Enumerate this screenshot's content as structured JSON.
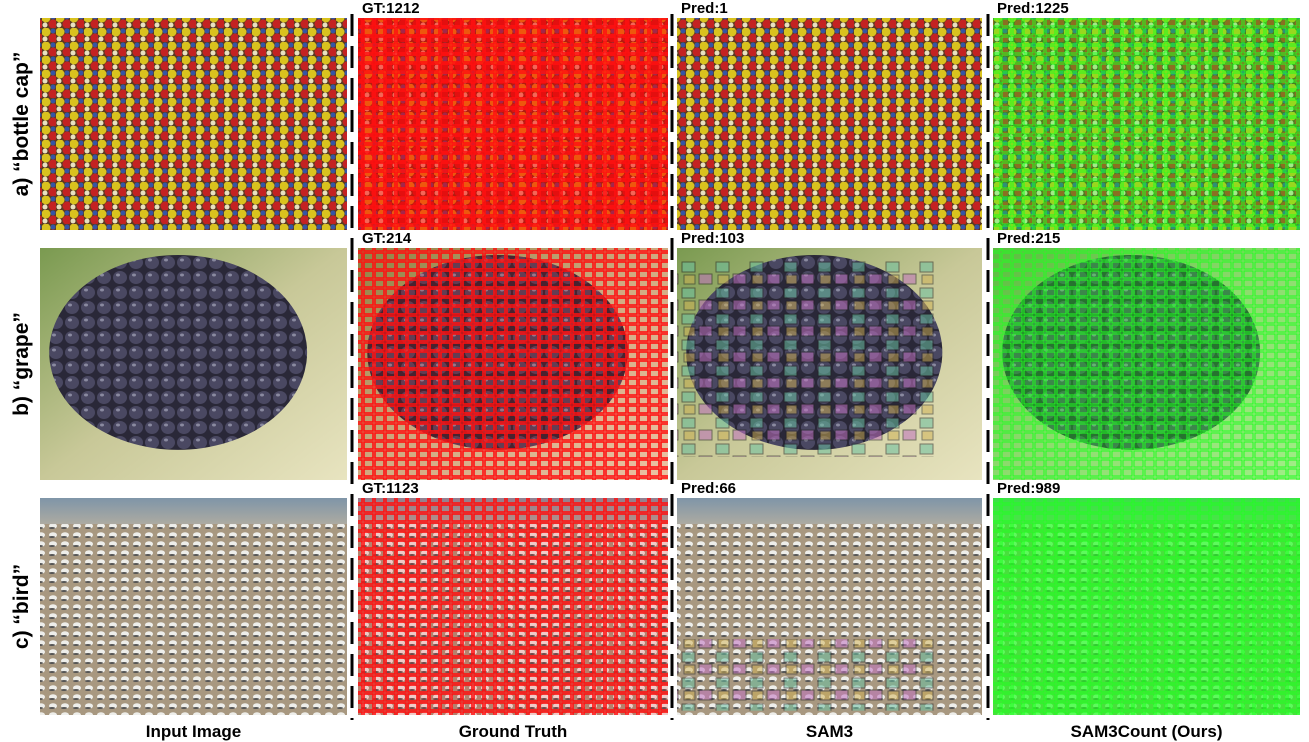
{
  "columns": [
    "Input Image",
    "Ground Truth",
    "SAM3",
    "SAM3Count (Ours)"
  ],
  "rows": [
    {
      "label": "a) “bottle cap”",
      "counts": [
        "GT:1212",
        "Pred:1",
        "Pred:1225"
      ]
    },
    {
      "label": "b) “grape”",
      "counts": [
        "GT:214",
        "Pred:103",
        "Pred:215"
      ]
    },
    {
      "label": "c) “bird”",
      "counts": [
        "GT:1123",
        "Pred:66",
        "Pred:989"
      ]
    }
  ]
}
